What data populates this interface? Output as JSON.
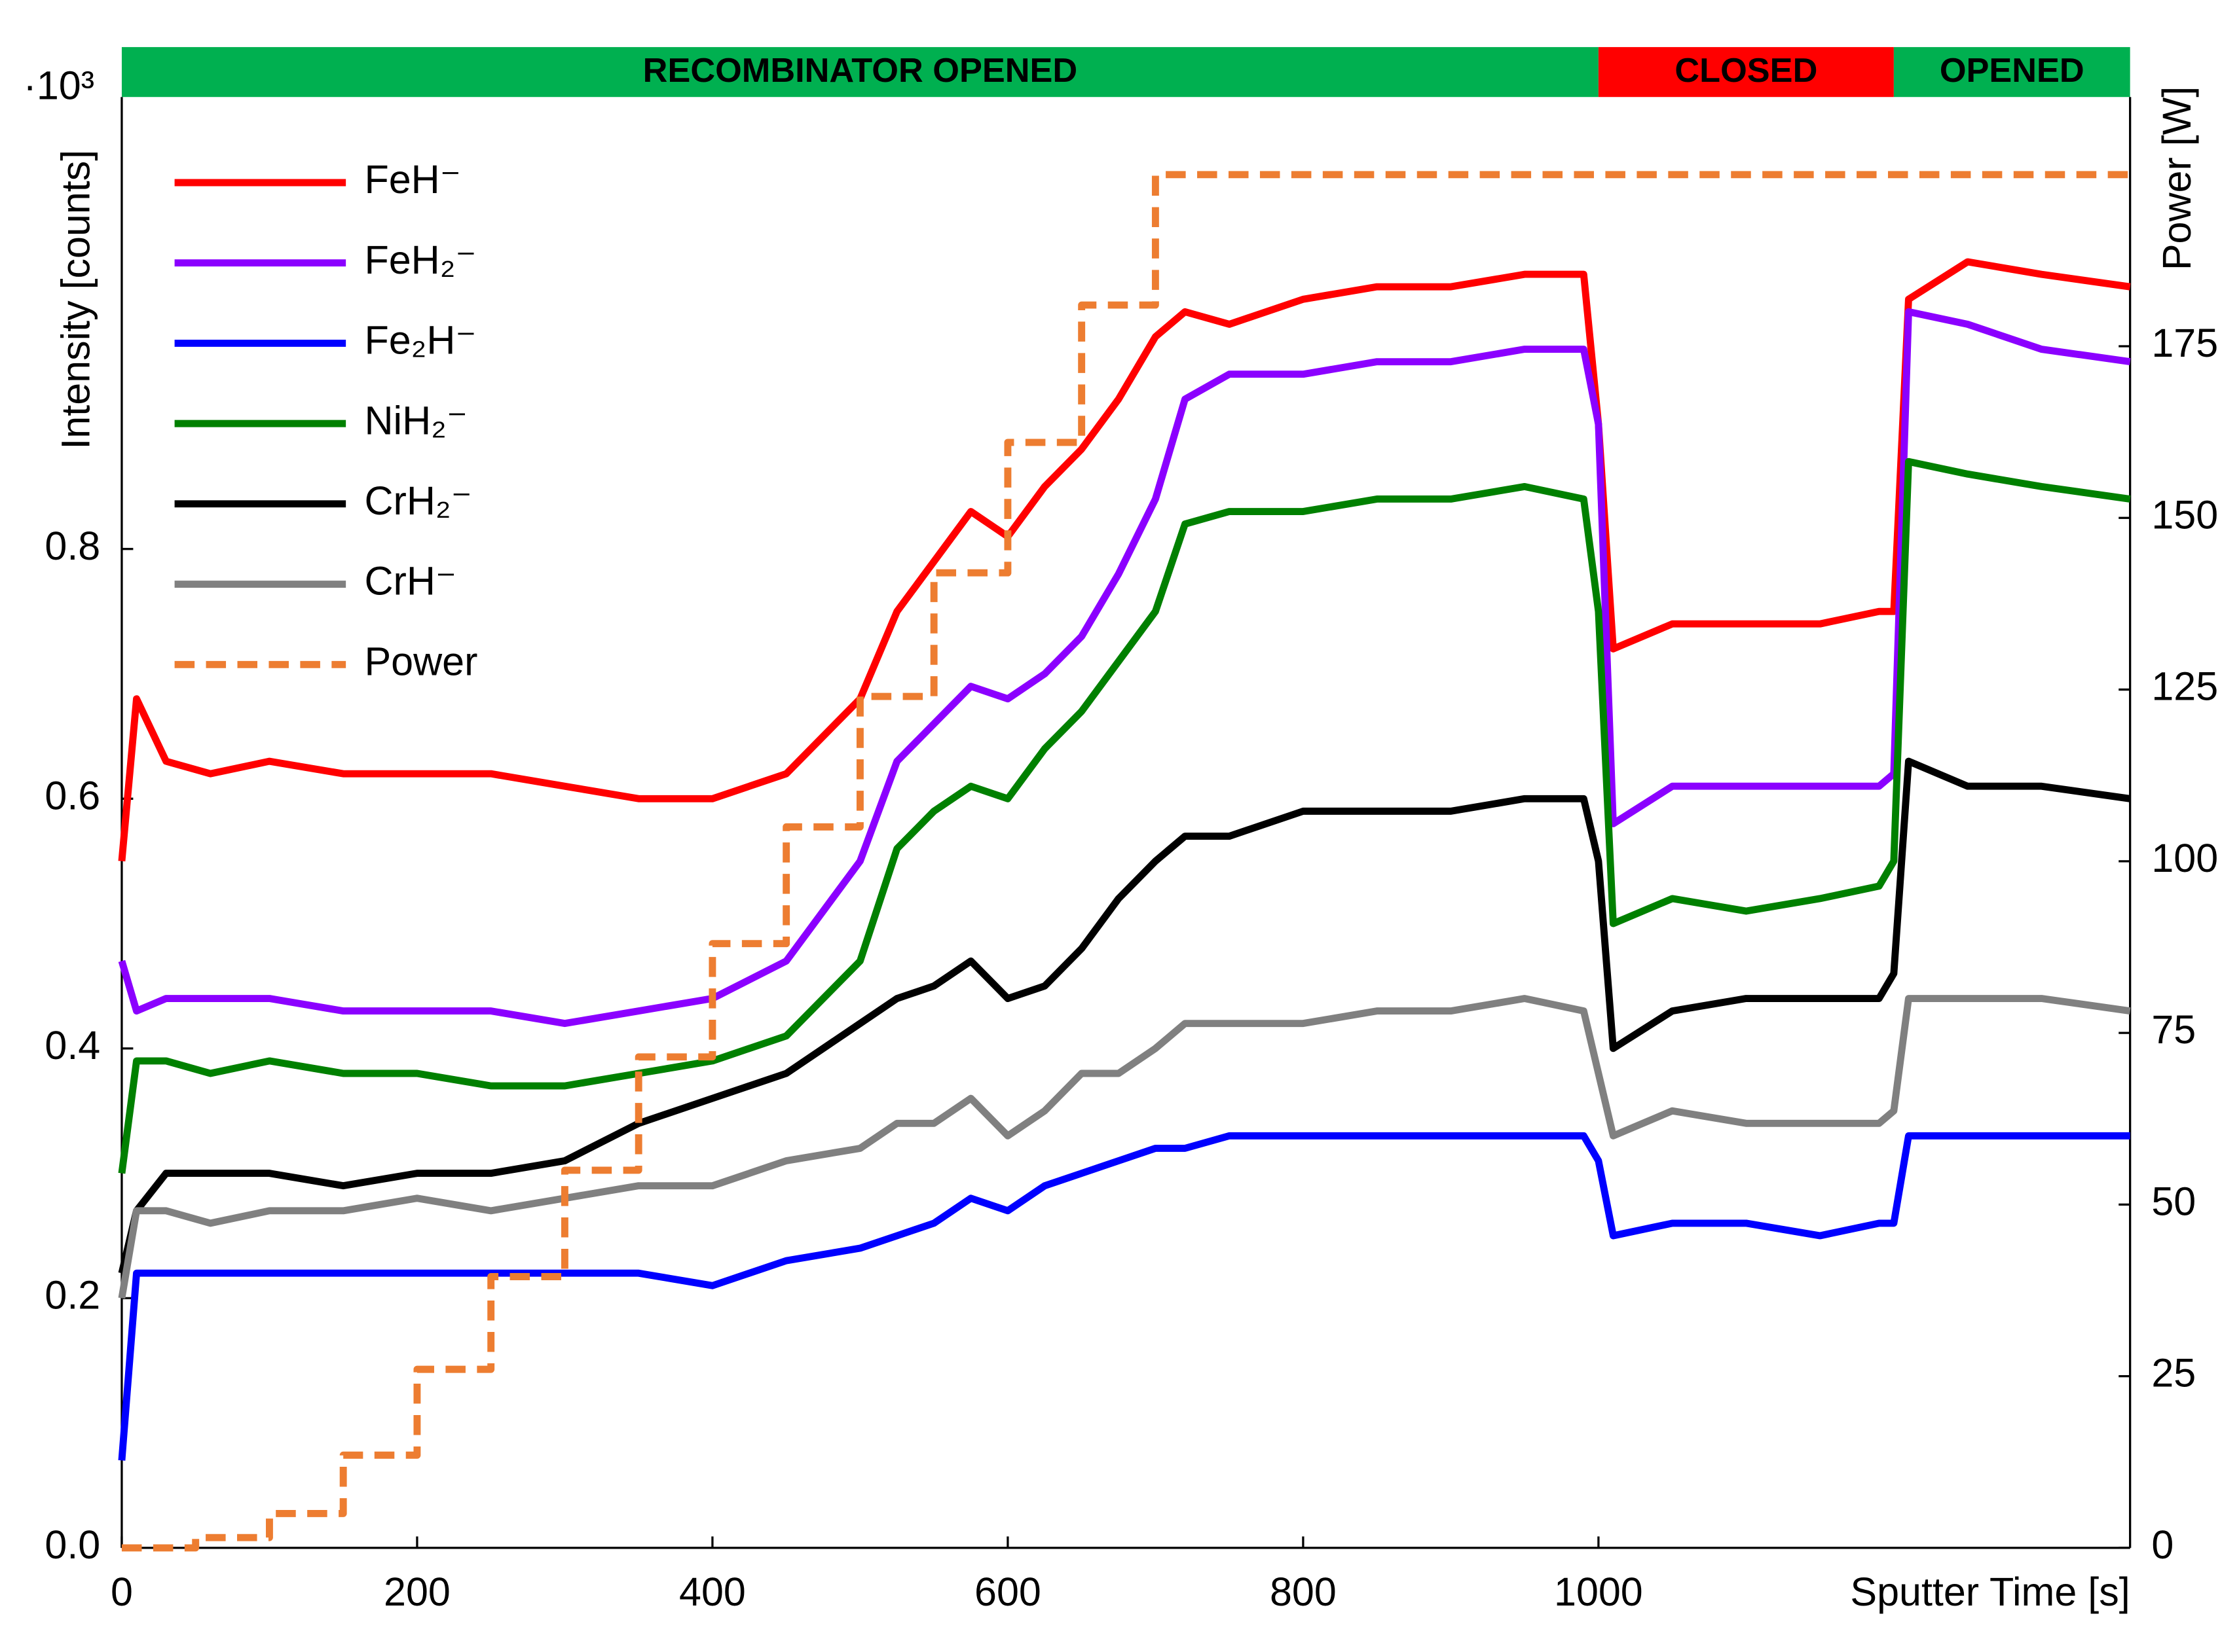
{
  "chart_data": {
    "type": "line",
    "y_label": "Intensity [counts]",
    "y2_label": "Power [W]",
    "x_label": "Sputter Time [s]",
    "y_multiplier": "·10³",
    "banner": [
      {
        "label": "RECOMBINATOR OPENED",
        "start": 0,
        "end": 1000,
        "color": "#00b050"
      },
      {
        "label": "CLOSED",
        "start": 1000,
        "end": 1200,
        "color": "#ff0000"
      },
      {
        "label": "OPENED",
        "start": 1200,
        "end": 1360,
        "color": "#00b050"
      }
    ],
    "xlim": [
      0,
      1360
    ],
    "xticks": [
      0,
      200,
      400,
      600,
      800,
      1000
    ],
    "ylim": [
      0,
      1.162
    ],
    "yticks": [
      {
        "value": 0,
        "label": "0.0"
      },
      0.2,
      0.4,
      0.6,
      0.8
    ],
    "y2lim": [
      0,
      211.3
    ],
    "y2ticks": [
      0,
      25,
      50,
      75,
      100,
      125,
      150,
      175
    ],
    "x": [
      0,
      10,
      30,
      60,
      100,
      150,
      200,
      250,
      300,
      350,
      400,
      450,
      500,
      525,
      550,
      575,
      600,
      625,
      650,
      675,
      700,
      720,
      750,
      800,
      850,
      900,
      950,
      990,
      1000,
      1010,
      1050,
      1100,
      1150,
      1190,
      1200,
      1210,
      1250,
      1300,
      1360
    ],
    "series": [
      {
        "name": "FeH⁻",
        "color": "#ff0000",
        "values": [
          0.55,
          0.68,
          0.63,
          0.62,
          0.63,
          0.62,
          0.62,
          0.62,
          0.61,
          0.6,
          0.6,
          0.62,
          0.68,
          0.75,
          0.79,
          0.83,
          0.81,
          0.85,
          0.88,
          0.92,
          0.97,
          0.99,
          0.98,
          1.0,
          1.01,
          1.01,
          1.02,
          1.02,
          0.9,
          0.72,
          0.74,
          0.74,
          0.74,
          0.75,
          0.75,
          1.0,
          1.03,
          1.02,
          1.01
        ]
      },
      {
        "name": "FeH₂⁻",
        "color": "#8b00ff",
        "values": [
          0.47,
          0.43,
          0.44,
          0.44,
          0.44,
          0.43,
          0.43,
          0.43,
          0.42,
          0.43,
          0.44,
          0.47,
          0.55,
          0.63,
          0.66,
          0.69,
          0.68,
          0.7,
          0.73,
          0.78,
          0.84,
          0.92,
          0.94,
          0.94,
          0.95,
          0.95,
          0.96,
          0.96,
          0.9,
          0.58,
          0.61,
          0.61,
          0.61,
          0.61,
          0.62,
          0.99,
          0.98,
          0.96,
          0.95
        ]
      },
      {
        "name": "Fe₂H⁻",
        "color": "#0000ff",
        "values": [
          0.07,
          0.22,
          0.22,
          0.22,
          0.22,
          0.22,
          0.22,
          0.22,
          0.22,
          0.22,
          0.21,
          0.23,
          0.24,
          0.25,
          0.26,
          0.28,
          0.27,
          0.29,
          0.3,
          0.31,
          0.32,
          0.32,
          0.33,
          0.33,
          0.33,
          0.33,
          0.33,
          0.33,
          0.31,
          0.25,
          0.26,
          0.26,
          0.25,
          0.26,
          0.26,
          0.33,
          0.33,
          0.33,
          0.33
        ]
      },
      {
        "name": "NiH₂⁻",
        "color": "#008000",
        "values": [
          0.3,
          0.39,
          0.39,
          0.38,
          0.39,
          0.38,
          0.38,
          0.37,
          0.37,
          0.38,
          0.39,
          0.41,
          0.47,
          0.56,
          0.59,
          0.61,
          0.6,
          0.64,
          0.67,
          0.71,
          0.75,
          0.82,
          0.83,
          0.83,
          0.84,
          0.84,
          0.85,
          0.84,
          0.75,
          0.5,
          0.52,
          0.51,
          0.52,
          0.53,
          0.55,
          0.87,
          0.86,
          0.85,
          0.84
        ]
      },
      {
        "name": "CrH₂⁻",
        "color": "#000000",
        "values": [
          0.22,
          0.27,
          0.3,
          0.3,
          0.3,
          0.29,
          0.3,
          0.3,
          0.31,
          0.34,
          0.36,
          0.38,
          0.42,
          0.44,
          0.45,
          0.47,
          0.44,
          0.45,
          0.48,
          0.52,
          0.55,
          0.57,
          0.57,
          0.59,
          0.59,
          0.59,
          0.6,
          0.6,
          0.55,
          0.4,
          0.43,
          0.44,
          0.44,
          0.44,
          0.46,
          0.63,
          0.61,
          0.61,
          0.6
        ]
      },
      {
        "name": "CrH⁻",
        "color": "#808080",
        "values": [
          0.2,
          0.27,
          0.27,
          0.26,
          0.27,
          0.27,
          0.28,
          0.27,
          0.28,
          0.29,
          0.29,
          0.31,
          0.32,
          0.34,
          0.34,
          0.36,
          0.33,
          0.35,
          0.38,
          0.38,
          0.4,
          0.42,
          0.42,
          0.42,
          0.43,
          0.43,
          0.44,
          0.43,
          0.38,
          0.33,
          0.35,
          0.34,
          0.34,
          0.34,
          0.35,
          0.44,
          0.44,
          0.44,
          0.43
        ]
      },
      {
        "name": "Power",
        "color": "#ed7d31",
        "axis": "y2",
        "line_style": "dashed",
        "x": [
          0,
          50,
          50,
          100,
          100,
          150,
          150,
          200,
          200,
          250,
          250,
          300,
          300,
          350,
          350,
          400,
          400,
          450,
          450,
          500,
          500,
          550,
          550,
          600,
          600,
          650,
          650,
          700,
          700,
          1360
        ],
        "values": [
          0,
          0,
          1.5,
          1.5,
          5,
          5,
          13.5,
          13.5,
          26,
          26,
          39.5,
          39.5,
          55,
          55,
          71.5,
          71.5,
          88,
          88,
          105,
          105,
          124,
          124,
          142,
          142,
          161,
          161,
          181,
          181,
          200,
          200
        ]
      }
    ]
  }
}
